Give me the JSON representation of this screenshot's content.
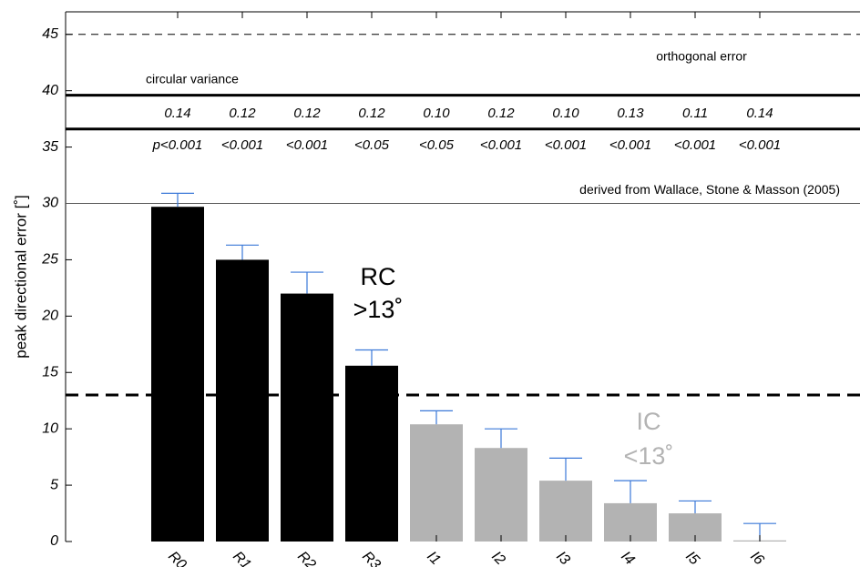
{
  "chart_data": {
    "type": "bar",
    "y_label": "peak directional error [˚]",
    "categories": [
      "R0",
      "R1",
      "R2",
      "R3",
      "I1",
      "I2",
      "I3",
      "I4",
      "I5",
      "I6"
    ],
    "values": [
      29.7,
      25.0,
      22.0,
      15.6,
      10.4,
      8.3,
      5.4,
      3.4,
      2.5,
      0.1
    ],
    "errors": [
      1.2,
      1.3,
      1.9,
      1.4,
      1.2,
      1.7,
      2.0,
      2.0,
      1.1,
      1.5
    ],
    "colors": [
      "#000000",
      "#000000",
      "#000000",
      "#000000",
      "#b3b3b3",
      "#b3b3b3",
      "#b3b3b3",
      "#b3b3b3",
      "#b3b3b3",
      "#b3b3b3"
    ],
    "error_color": "#3a78d8",
    "ylim": [
      0,
      47
    ],
    "yticks": [
      0,
      5,
      10,
      15,
      20,
      25,
      30,
      35,
      40,
      45
    ],
    "circular_variance": {
      "values": [
        0.14,
        0.12,
        0.12,
        0.12,
        0.1,
        0.12,
        0.1,
        0.13,
        0.11,
        0.14
      ],
      "value_labels": [
        "0.14",
        "0.12",
        "0.12",
        "0.12",
        "0.10",
        "0.12",
        "0.10",
        "0.13",
        "0.11",
        "0.14"
      ]
    },
    "p_values": [
      "p<0.001",
      "<0.001",
      "<0.001",
      "<0.05",
      "<0.05",
      "<0.001",
      "<0.001",
      "<0.001",
      "<0.001",
      "<0.001"
    ],
    "reference_lines": [
      {
        "value": 45,
        "dashed": true,
        "thick": false,
        "label": "orthogonal error"
      },
      {
        "value": 39.6,
        "dashed": false,
        "thick": true,
        "label": "circular variance"
      },
      {
        "value": 36.6,
        "dashed": false,
        "thick": true
      },
      {
        "value": 30,
        "dashed": false,
        "thick": false,
        "label": "derived from Wallace, Stone & Masson (2005)"
      },
      {
        "value": 13,
        "dashed": true,
        "thick": true
      }
    ],
    "annotations": [
      {
        "text": "RC",
        "color": "#000000"
      },
      {
        "text": ">13˚",
        "color": "#000000"
      },
      {
        "text": "IC",
        "color": "#b3b3b3"
      },
      {
        "text": "<13˚",
        "color": "#b3b3b3"
      }
    ]
  }
}
